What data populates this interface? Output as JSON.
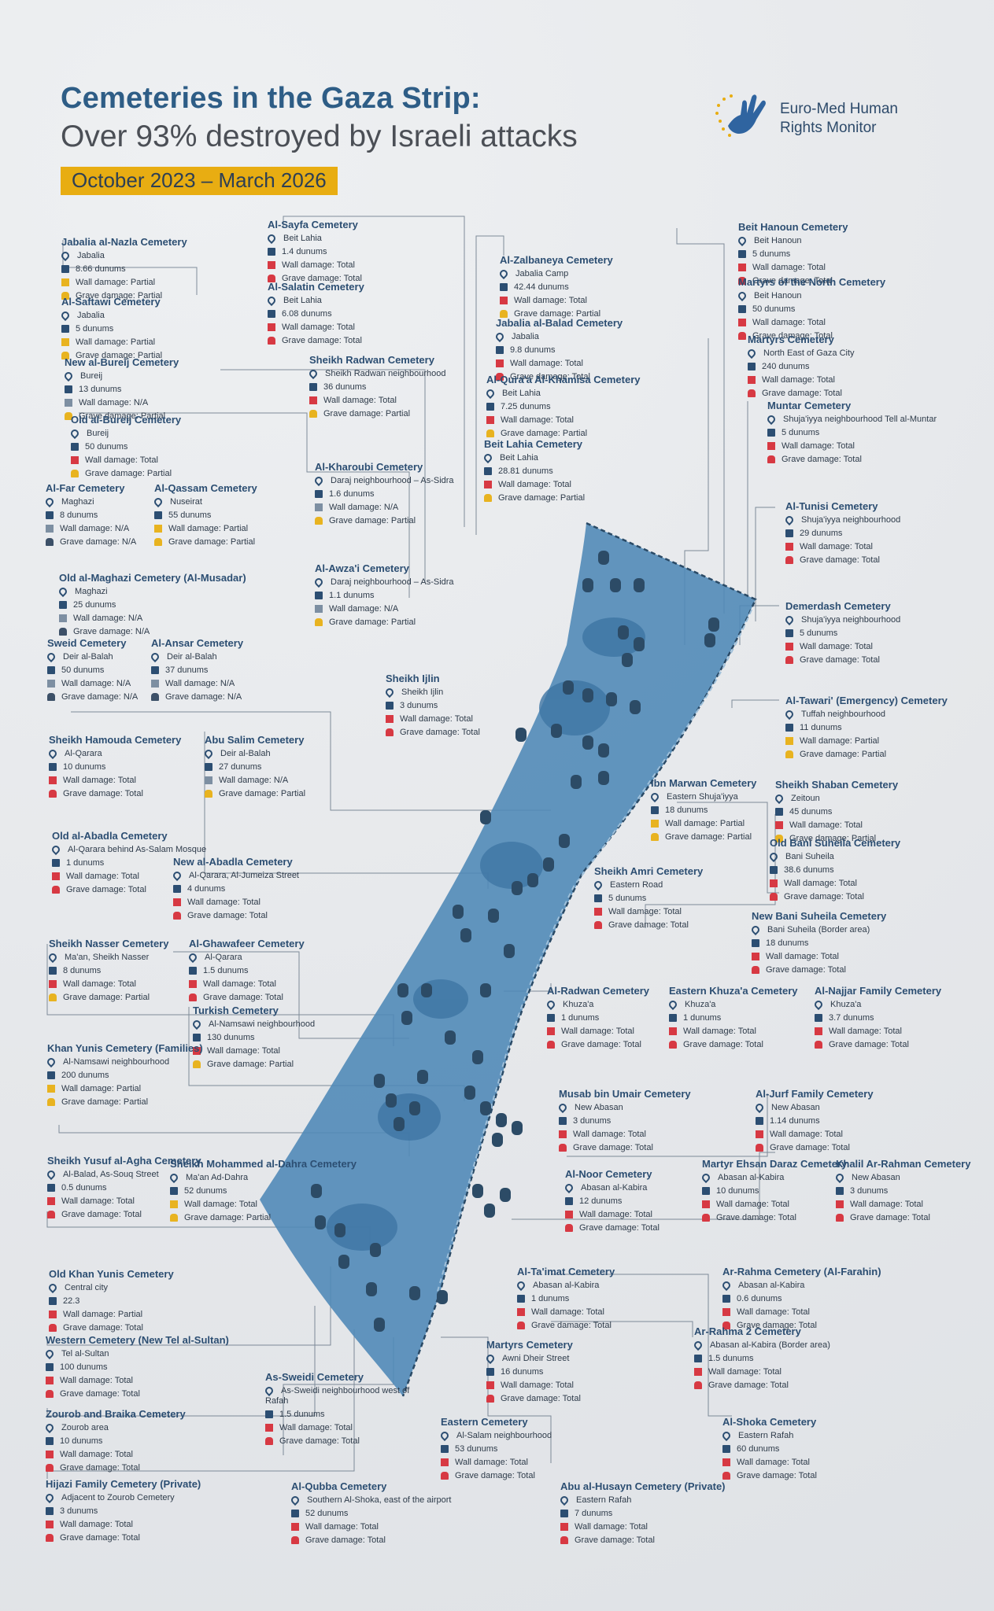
{
  "header": {
    "title": "Cemeteries in the Gaza Strip:",
    "subtitle": "Over 93% destroyed by Israeli attacks",
    "date_range": "October 2023 – March 2026"
  },
  "logo": {
    "line1": "Euro-Med Human",
    "line2": "Rights Monitor"
  },
  "colors": {
    "brand_blue": "#2e5d86",
    "accent_yellow": "#e8ad12",
    "total": "#d73943",
    "partial": "#e8b320",
    "map_fill": "#4d87b6"
  },
  "cemeteries": [
    {
      "name": "Jabalia al-Nazla Cemetery",
      "loc": "Jabalia",
      "area": "8.66 dunums",
      "wall": "Wall damage: Partial",
      "grave": "Grave damage: Partial",
      "ws": "p",
      "gs": "p"
    },
    {
      "name": "Al-Saftawi Cemetery",
      "loc": "Jabalia",
      "area": "5 dunums",
      "wall": "Wall damage: Partial",
      "grave": "Grave damage: Partial",
      "ws": "p",
      "gs": "p"
    },
    {
      "name": "New al-Bureij Cemetery",
      "loc": "Bureij",
      "area": "13 dunums",
      "wall": "Wall damage: N/A",
      "grave": "Grave damage: Partial",
      "ws": "n",
      "gs": "p"
    },
    {
      "name": "Old al-Bureij Cemetery",
      "loc": "Bureij",
      "area": "50 dunums",
      "wall": "Wall damage: Total",
      "grave": "Grave damage: Partial",
      "ws": "t",
      "gs": "p"
    },
    {
      "name": "Al-Far Cemetery",
      "loc": "Maghazi",
      "area": "8 dunums",
      "wall": "Wall damage: N/A",
      "grave": "Grave damage: N/A",
      "ws": "n",
      "gs": "n"
    },
    {
      "name": "Al-Qassam Cemetery",
      "loc": "Nuseirat",
      "area": "55 dunums",
      "wall": "Wall damage: Partial",
      "grave": "Grave damage: Partial",
      "ws": "p",
      "gs": "p"
    },
    {
      "name": "Old al-Maghazi Cemetery (Al-Musadar)",
      "loc": "Maghazi",
      "area": "25 dunums",
      "wall": "Wall damage: N/A",
      "grave": "Grave damage: N/A",
      "ws": "n",
      "gs": "n"
    },
    {
      "name": "Sweid Cemetery",
      "loc": "Deir al-Balah",
      "area": "50 dunums",
      "wall": "Wall damage: N/A",
      "grave": "Grave damage: N/A",
      "ws": "n",
      "gs": "n"
    },
    {
      "name": "Al-Ansar Cemetery",
      "loc": "Deir al-Balah",
      "area": "37 dunums",
      "wall": "Wall damage: N/A",
      "grave": "Grave damage: N/A",
      "ws": "n",
      "gs": "n"
    },
    {
      "name": "Sheikh Hamouda Cemetery",
      "loc": "Al-Qarara",
      "area": "10 dunums",
      "wall": "Wall damage: Total",
      "grave": "Grave damage: Total",
      "ws": "t",
      "gs": "t"
    },
    {
      "name": "Abu Salim Cemetery",
      "loc": "Deir al-Balah",
      "area": "27 dunums",
      "wall": "Wall damage: N/A",
      "grave": "Grave damage: Partial",
      "ws": "n",
      "gs": "p"
    },
    {
      "name": "Old al-Abadla Cemetery",
      "loc": "Al-Qarara behind As-Salam Mosque",
      "area": "1 dunums",
      "wall": "Wall damage: Total",
      "grave": "Grave damage: Total",
      "ws": "t",
      "gs": "t"
    },
    {
      "name": "New al-Abadla Cemetery",
      "loc": "Al-Qarara, Al-Jumeiza Street",
      "area": "4 dunums",
      "wall": "Wall damage: Total",
      "grave": "Grave damage: Total",
      "ws": "t",
      "gs": "t"
    },
    {
      "name": "Sheikh Nasser Cemetery",
      "loc": "Ma'an, Sheikh Nasser",
      "area": "8 dunums",
      "wall": "Wall damage: Total",
      "grave": "Grave damage: Partial",
      "ws": "t",
      "gs": "p"
    },
    {
      "name": "Al-Ghawafeer Cemetery",
      "loc": "Al-Qarara",
      "area": "1.5 dunums",
      "wall": "Wall damage: Total",
      "grave": "Grave damage: Total",
      "ws": "t",
      "gs": "t"
    },
    {
      "name": "Turkish Cemetery",
      "loc": "Al-Namsawi neighbourhood",
      "area": "130 dunums",
      "wall": "Wall damage: Total",
      "grave": "Grave damage: Partial",
      "ws": "t",
      "gs": "p"
    },
    {
      "name": "Khan Yunis Cemetery (Families)",
      "loc": "Al-Namsawi neighbourhood",
      "area": "200 dunums",
      "wall": "Wall damage: Partial",
      "grave": "Grave damage: Partial",
      "ws": "p",
      "gs": "p"
    },
    {
      "name": "Sheikh Yusuf al-Agha Cemetery",
      "loc": "Al-Balad, As-Souq Street",
      "area": "0.5 dunums",
      "wall": "Wall damage: Total",
      "grave": "Grave damage: Total",
      "ws": "t",
      "gs": "t"
    },
    {
      "name": "Sheikh Mohammed al-Dahra Cemetery",
      "loc": "Ma'an Ad-Dahra",
      "area": "52 dunums",
      "wall": "Wall damage: Total",
      "grave": "Grave damage: Partial",
      "ws": "p",
      "gs": "p"
    },
    {
      "name": "Old Khan Yunis Cemetery",
      "loc": "Central city",
      "area": "22.3",
      "wall": "Wall damage: Partial",
      "grave": "Grave damage: Total",
      "ws": "t",
      "gs": "t"
    },
    {
      "name": "Western Cemetery (New Tel al-Sultan)",
      "loc": "Tel al-Sultan",
      "area": "100 dunums",
      "wall": "Wall damage: Total",
      "grave": "Grave damage: Total",
      "ws": "t",
      "gs": "t"
    },
    {
      "name": "Zourob and Braika Cemetery",
      "loc": "Zourob area",
      "area": "10 dunums",
      "wall": "Wall damage: Total",
      "grave": "Grave damage: Total",
      "ws": "t",
      "gs": "t"
    },
    {
      "name": "Hijazi Family Cemetery (Private)",
      "loc": "Adjacent to Zourob Cemetery",
      "area": "3 dunums",
      "wall": "Wall damage: Total",
      "grave": "Grave damage: Total",
      "ws": "t",
      "gs": "t"
    },
    {
      "name": "Al-Sayfa Cemetery",
      "loc": "Beit Lahia",
      "area": "1.4 dunums",
      "wall": "Wall damage: Total",
      "grave": "Grave damage: Total",
      "ws": "t",
      "gs": "t"
    },
    {
      "name": "Al-Salatin Cemetery",
      "loc": "Beit Lahia",
      "area": "6.08 dunums",
      "wall": "Wall damage: Total",
      "grave": "Grave damage: Total",
      "ws": "t",
      "gs": "t"
    },
    {
      "name": "Sheikh Radwan Cemetery",
      "loc": "Sheikh Radwan neighbourhood",
      "area": "36 dunums",
      "wall": "Wall damage: Total",
      "grave": "Grave damage: Partial",
      "ws": "t",
      "gs": "p"
    },
    {
      "name": "Al-Kharoubi Cemetery",
      "loc": "Daraj neighbourhood – As-Sidra",
      "area": "1.6 dunums",
      "wall": "Wall damage: N/A",
      "grave": "Grave damage: Partial",
      "ws": "n",
      "gs": "p"
    },
    {
      "name": "Al-Awza'i Cemetery",
      "loc": "Daraj neighbourhood – As-Sidra",
      "area": "1.1 dunums",
      "wall": "Wall damage: N/A",
      "grave": "Grave damage: Partial",
      "ws": "n",
      "gs": "p"
    },
    {
      "name": "Sheikh Ijlin",
      "loc": "Sheikh Ijlin",
      "area": "3 dunums",
      "wall": "Wall damage: Total",
      "grave": "Grave damage: Total",
      "ws": "t",
      "gs": "t"
    },
    {
      "name": "Al-Zalbaneya Cemetery",
      "loc": "Jabalia Camp",
      "area": "42.44 dunums",
      "wall": "Wall damage: Total",
      "grave": "Grave damage: Partial",
      "ws": "t",
      "gs": "p"
    },
    {
      "name": "Jabalia al-Balad Cemetery",
      "loc": "Jabalia",
      "area": "9.8 dunums",
      "wall": "Wall damage: Total",
      "grave": "Grave damage: Total",
      "ws": "t",
      "gs": "t"
    },
    {
      "name": "Al-Qura'a Al-Khamisa Cemetery",
      "loc": "Beit Lahia",
      "area": "7.25 dunums",
      "wall": "Wall damage: Total",
      "grave": "Grave damage: Partial",
      "ws": "t",
      "gs": "p"
    },
    {
      "name": "Beit Lahia Cemetery",
      "loc": "Beit Lahia",
      "area": "28.81 dunums",
      "wall": "Wall damage: Total",
      "grave": "Grave damage: Partial",
      "ws": "t",
      "gs": "p"
    },
    {
      "name": "Beit Hanoun Cemetery",
      "loc": "Beit Hanoun",
      "area": "5 dunums",
      "wall": "Wall damage: Total",
      "grave": "Grave damage: Total",
      "ws": "t",
      "gs": "t"
    },
    {
      "name": "Martyrs of the North Cemetery",
      "loc": "Beit Hanoun",
      "area": "50 dunums",
      "wall": "Wall damage: Total",
      "grave": "Grave damage: Total",
      "ws": "t",
      "gs": "t"
    },
    {
      "name": "Martyrs Cemetery",
      "loc": "North East of Gaza City",
      "area": "240 dunums",
      "wall": "Wall damage: Total",
      "grave": "Grave damage: Total",
      "ws": "t",
      "gs": "t"
    },
    {
      "name": "Muntar Cemetery",
      "loc": "Shuja'iyya neighbourhood Tell al-Muntar",
      "area": "5 dunums",
      "wall": "Wall damage: Total",
      "grave": "Grave damage: Total",
      "ws": "t",
      "gs": "t"
    },
    {
      "name": "Al-Tunisi Cemetery",
      "loc": "Shuja'iyya neighbourhood",
      "area": "29 dunums",
      "wall": "Wall damage: Total",
      "grave": "Grave damage: Total",
      "ws": "t",
      "gs": "t"
    },
    {
      "name": "Demerdash Cemetery",
      "loc": "Shuja'iyya neighbourhood",
      "area": "5 dunums",
      "wall": "Wall damage: Total",
      "grave": "Grave damage: Total",
      "ws": "t",
      "gs": "t"
    },
    {
      "name": "Al-Tawari' (Emergency) Cemetery",
      "loc": "Tuffah neighbourhood",
      "area": "11 dunums",
      "wall": "Wall damage: Partial",
      "grave": "Grave damage: Partial",
      "ws": "p",
      "gs": "p"
    },
    {
      "name": "Ibn Marwan Cemetery",
      "loc": "Eastern Shuja'iyya",
      "area": "18 dunums",
      "wall": "Wall damage: Partial",
      "grave": "Grave damage: Partial",
      "ws": "p",
      "gs": "p"
    },
    {
      "name": "Sheikh Shaban Cemetery",
      "loc": "Zeitoun",
      "area": "45 dunums",
      "wall": "Wall damage: Total",
      "grave": "Grave damage: Partial",
      "ws": "t",
      "gs": "p"
    },
    {
      "name": "Old Bani Suheila Cemetery",
      "loc": "Bani Suheila",
      "area": "38.6 dunums",
      "wall": "Wall damage: Total",
      "grave": "Grave damage: Total",
      "ws": "t",
      "gs": "t"
    },
    {
      "name": "Sheikh Amri Cemetery",
      "loc": "Eastern Road",
      "area": "5 dunums",
      "wall": "Wall damage: Total",
      "grave": "Grave damage: Total",
      "ws": "t",
      "gs": "t"
    },
    {
      "name": "New Bani Suheila Cemetery",
      "loc": "Bani Suheila (Border area)",
      "area": "18 dunums",
      "wall": "Wall damage: Total",
      "grave": "Grave damage: Total",
      "ws": "t",
      "gs": "t"
    },
    {
      "name": "Al-Radwan Cemetery",
      "loc": "Khuza'a",
      "area": "1 dunums",
      "wall": "Wall damage: Total",
      "grave": "Grave damage: Total",
      "ws": "t",
      "gs": "t"
    },
    {
      "name": "Eastern Khuza'a Cemetery",
      "loc": "Khuza'a",
      "area": "1 dunums",
      "wall": "Wall damage: Total",
      "grave": "Grave damage: Total",
      "ws": "t",
      "gs": "t"
    },
    {
      "name": "Al-Najjar Family Cemetery",
      "loc": "Khuza'a",
      "area": "3.7 dunums",
      "wall": "Wall damage: Total",
      "grave": "Grave damage: Total",
      "ws": "t",
      "gs": "t"
    },
    {
      "name": "Musab bin Umair Cemetery",
      "loc": "New Abasan",
      "area": "3 dunums",
      "wall": "Wall damage: Total",
      "grave": "Grave damage: Total",
      "ws": "t",
      "gs": "t"
    },
    {
      "name": "Al-Jurf Family Cemetery",
      "loc": "New Abasan",
      "area": "1.14 dunums",
      "wall": "Wall damage: Total",
      "grave": "Grave damage: Total",
      "ws": "t",
      "gs": "t"
    },
    {
      "name": "Al-Noor Cemetery",
      "loc": "Abasan al-Kabira",
      "area": "12 dunums",
      "wall": "Wall damage: Total",
      "grave": "Grave damage: Total",
      "ws": "t",
      "gs": "t"
    },
    {
      "name": "Martyr Ehsan Daraz Cemetery",
      "loc": "Abasan al-Kabira",
      "area": "10 dunums",
      "wall": "Wall damage: Total",
      "grave": "Grave damage: Total",
      "ws": "t",
      "gs": "t"
    },
    {
      "name": "Khalil Ar-Rahman Cemetery",
      "loc": "New Abasan",
      "area": "3 dunums",
      "wall": "Wall damage: Total",
      "grave": "Grave damage: Total",
      "ws": "t",
      "gs": "t"
    },
    {
      "name": "Al-Ta'imat Cemetery",
      "loc": "Abasan al-Kabira",
      "area": "1 dunums",
      "wall": "Wall damage: Total",
      "grave": "Grave damage: Total",
      "ws": "t",
      "gs": "t"
    },
    {
      "name": "Ar-Rahma Cemetery (Al-Farahin)",
      "loc": "Abasan al-Kabira",
      "area": "0.6 dunums",
      "wall": "Wall damage: Total",
      "grave": "Grave damage: Total",
      "ws": "t",
      "gs": "t"
    },
    {
      "name": "Ar-Rahma 2 Cemetery",
      "loc": "Abasan al-Kabira (Border area)",
      "area": "1.5 dunums",
      "wall": "Wall damage: Total",
      "grave": "Grave damage: Total",
      "ws": "t",
      "gs": "t"
    },
    {
      "name": "Martyrs Cemetery",
      "loc": "Awni Dheir Street",
      "area": "16 dunums",
      "wall": "Wall damage: Total",
      "grave": "Grave damage: Total",
      "ws": "t",
      "gs": "t"
    },
    {
      "name": "As-Sweidi Cemetery",
      "loc": "As-Sweidi neighbourhood west of Rafah",
      "area": "1.5 dunums",
      "wall": "Wall damage: Total",
      "grave": "Grave damage: Total",
      "ws": "t",
      "gs": "t"
    },
    {
      "name": "Eastern Cemetery",
      "loc": "Al-Salam neighbourhood",
      "area": "53 dunums",
      "wall": "Wall damage: Total",
      "grave": "Grave damage: Total",
      "ws": "t",
      "gs": "t"
    },
    {
      "name": "Al-Shoka Cemetery",
      "loc": "Eastern Rafah",
      "area": "60 dunums",
      "wall": "Wall damage: Total",
      "grave": "Grave damage: Total",
      "ws": "t",
      "gs": "t"
    },
    {
      "name": "Al-Qubba Cemetery",
      "loc": "Southern Al-Shoka, east of the airport",
      "area": "52 dunums",
      "wall": "Wall damage: Total",
      "grave": "Grave damage: Total",
      "ws": "t",
      "gs": "t"
    },
    {
      "name": "Abu al-Husayn Cemetery (Private)",
      "loc": "Eastern Rafah",
      "area": "7 dunums",
      "wall": "Wall damage: Total",
      "grave": "Grave damage: Total",
      "ws": "t",
      "gs": "t"
    }
  ]
}
